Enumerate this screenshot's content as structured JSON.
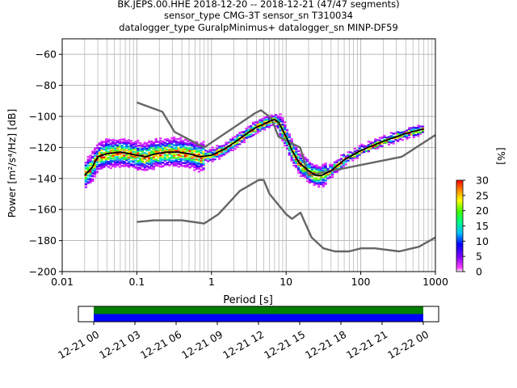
{
  "header": {
    "line1": "BK.JEPS.00.HHE   2018-12-20 -- 2018-12-21  (47/47 segments)",
    "line2": "sensor_type CMG-3T sensor_sn T310034",
    "line3": "datalogger_type GuralpMinimus+ datalogger_sn MINP-DF59"
  },
  "chart_data": [
    {
      "type": "heatmap",
      "title": "BK.JEPS.00.HHE   2018-12-20 -- 2018-12-21  (47/47 segments)",
      "xlabel": "Period [s]",
      "ylabel": "Power [m²/s⁴/Hz] [dB]",
      "x_scale": "log",
      "xlim": [
        0.01,
        1000
      ],
      "ylim": [
        -200,
        -50
      ],
      "x_tick_labels": [
        "0.01",
        "0.1",
        "1",
        "10",
        "100",
        "1000"
      ],
      "y_tick_labels": [
        "−200",
        "−180",
        "−160",
        "−140",
        "−120",
        "−100",
        "−80",
        "−60"
      ],
      "y_ticks": [
        -200,
        -180,
        -160,
        -140,
        -120,
        -100,
        -80,
        -60
      ],
      "grid": true,
      "colorbar": {
        "label": "[%]",
        "min": 0,
        "max": 30,
        "ticks": [
          0,
          5,
          10,
          15,
          20,
          25,
          30
        ]
      },
      "series": [
        {
          "role": "mean",
          "period": [
            0.02,
            0.025,
            0.03,
            0.04,
            0.06,
            0.08,
            0.1,
            0.13,
            0.18,
            0.25,
            0.35,
            0.5,
            0.7,
            1,
            1.5,
            2,
            3,
            4,
            5,
            6,
            7,
            8,
            10,
            12,
            15,
            20,
            25,
            30,
            40,
            60,
            100,
            200,
            400,
            700
          ],
          "power": [
            -138,
            -133,
            -126,
            -124,
            -123,
            -124,
            -125,
            -126,
            -124,
            -123,
            -123,
            -124,
            -126,
            -125,
            -121,
            -117,
            -111,
            -107,
            -105,
            -103,
            -102,
            -104,
            -113,
            -122,
            -130,
            -135,
            -138,
            -138,
            -135,
            -128,
            -122,
            -116,
            -111,
            -108
          ]
        },
        {
          "role": "nlnm",
          "period": [
            0.1,
            0.17,
            0.4,
            0.8,
            1.24,
            2.4,
            4.3,
            5,
            6,
            10,
            12,
            15.6,
            21.9,
            31.6,
            45,
            70,
            101,
            154,
            328,
            600,
            1000
          ],
          "power": [
            -168,
            -167,
            -167,
            -169,
            -163,
            -148,
            -141,
            -141,
            -150,
            -163,
            -166,
            -162,
            -178,
            -185,
            -187,
            -187,
            -185,
            -185,
            -187,
            -184,
            -178
          ]
        },
        {
          "role": "nhnm",
          "period": [
            0.1,
            0.22,
            0.32,
            0.8,
            3.8,
            4.6,
            6.3,
            7.9,
            15.4,
            20,
            354.8,
            1000
          ],
          "power": [
            -91,
            -97,
            -110,
            -120,
            -98,
            -96,
            -101,
            -113,
            -120,
            -138,
            -126,
            -112
          ]
        }
      ]
    },
    {
      "type": "timeline",
      "x_tick_labels": [
        "12-21 00",
        "12-21 03",
        "12-21 06",
        "12-21 09",
        "12-21 12",
        "12-21 15",
        "12-21 18",
        "12-21 21",
        "12-22 00"
      ],
      "bands": [
        {
          "color": "#008000"
        },
        {
          "color": "#0000ff"
        }
      ]
    }
  ]
}
